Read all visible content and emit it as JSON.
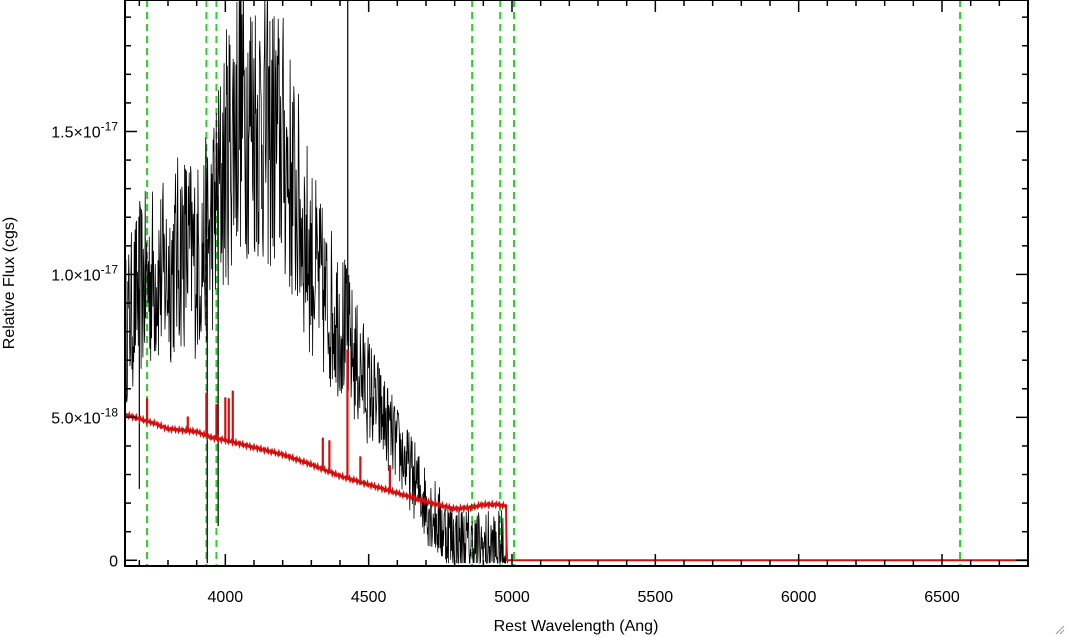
{
  "chart_data": {
    "type": "line",
    "xlabel": "Rest Wavelength (Ang)",
    "ylabel": "Relative Flux (cgs)",
    "xlim": [
      3650,
      6800
    ],
    "ylim": [
      -2e-19,
      1.96e-17
    ],
    "x_ticks": [
      {
        "value": 4000,
        "label": "4000"
      },
      {
        "value": 4500,
        "label": "4500"
      },
      {
        "value": 5000,
        "label": "5000"
      },
      {
        "value": 5500,
        "label": "5500"
      },
      {
        "value": 6000,
        "label": "6000"
      },
      {
        "value": 6500,
        "label": "6500"
      }
    ],
    "x_minor_step": 100,
    "y_ticks": [
      {
        "value": 0,
        "mant": "0",
        "exp": ""
      },
      {
        "value": 5e-18,
        "mant": "5.0×10",
        "exp": "-18"
      },
      {
        "value": 1e-17,
        "mant": "1.0×10",
        "exp": "-17"
      },
      {
        "value": 1.5e-17,
        "mant": "1.5×10",
        "exp": "-17"
      }
    ],
    "y_minor_step": 1e-18,
    "grid": false,
    "vlines": {
      "color": "#2ad12a",
      "style": "dashed",
      "x": [
        3727,
        3934,
        3969,
        4861,
        4959,
        5007,
        6563
      ]
    },
    "series": [
      {
        "role": "observed",
        "color": "#000000",
        "envelope": [
          [
            3650,
            8e-18
          ],
          [
            3700,
            9.5e-18
          ],
          [
            3750,
            1e-17
          ],
          [
            3800,
            1e-17
          ],
          [
            3850,
            1.1e-17
          ],
          [
            3900,
            1.05e-17
          ],
          [
            3950,
            1.15e-17
          ],
          [
            4000,
            1.4e-17
          ],
          [
            4050,
            1.6e-17
          ],
          [
            4100,
            1.55e-17
          ],
          [
            4150,
            1.5e-17
          ],
          [
            4200,
            1.45e-17
          ],
          [
            4250,
            1.25e-17
          ],
          [
            4300,
            1.05e-17
          ],
          [
            4350,
            9e-18
          ],
          [
            4400,
            8.5e-18
          ],
          [
            4450,
            7e-18
          ],
          [
            4500,
            6e-18
          ],
          [
            4550,
            5e-18
          ],
          [
            4600,
            4e-18
          ],
          [
            4650,
            3e-18
          ],
          [
            4700,
            2e-18
          ],
          [
            4750,
            1.2e-18
          ],
          [
            4800,
            7e-19
          ],
          [
            4850,
            5e-19
          ],
          [
            4900,
            4e-19
          ],
          [
            4950,
            4e-19
          ],
          [
            4985,
            3e-19
          ]
        ],
        "noise": 4e-18,
        "spikes": [
          [
            4427,
            1.96e-17
          ],
          [
            3937,
            -1e-19
          ],
          [
            3975,
            1.2e-18
          ],
          [
            3700,
            2.5e-18
          ]
        ]
      },
      {
        "role": "model",
        "color": "#d40f0f",
        "points": [
          [
            3650,
            5.1e-18
          ],
          [
            3700,
            4.95e-18
          ],
          [
            3750,
            4.8e-18
          ],
          [
            3800,
            4.6e-18
          ],
          [
            3850,
            4.55e-18
          ],
          [
            3900,
            4.5e-18
          ],
          [
            3950,
            4.3e-18
          ],
          [
            4000,
            4.2e-18
          ],
          [
            4100,
            3.95e-18
          ],
          [
            4200,
            3.7e-18
          ],
          [
            4300,
            3.35e-18
          ],
          [
            4400,
            2.95e-18
          ],
          [
            4500,
            2.65e-18
          ],
          [
            4600,
            2.35e-18
          ],
          [
            4700,
            2.05e-18
          ],
          [
            4800,
            1.8e-18
          ],
          [
            4860,
            1.85e-18
          ],
          [
            4900,
            1.95e-18
          ],
          [
            4950,
            1.95e-18
          ],
          [
            4980,
            1.9e-18
          ],
          [
            4982,
            0.0
          ],
          [
            5100,
            0.0
          ],
          [
            6800,
            0.0
          ]
        ],
        "lines": [
          [
            3727,
            8e-19
          ],
          [
            3869,
            5e-19
          ],
          [
            3934,
            1.5e-18
          ],
          [
            3969,
            1.2e-18
          ],
          [
            4000,
            1.5e-18
          ],
          [
            4012,
            1.5e-18
          ],
          [
            4026,
            1.8e-18
          ],
          [
            4340,
            1.1e-18
          ],
          [
            4363,
            1.1e-18
          ],
          [
            4426,
            4.5e-18
          ],
          [
            4471,
            9e-19
          ],
          [
            4574,
            9e-19
          ]
        ]
      }
    ]
  }
}
